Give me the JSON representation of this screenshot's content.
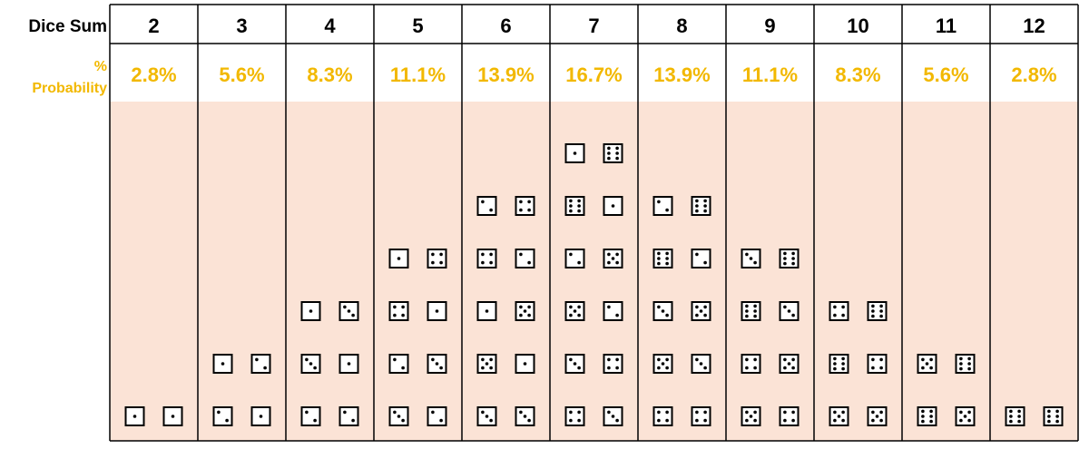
{
  "labels": {
    "sum": "Dice Sum",
    "prob_line1": "%",
    "prob_line2": "Probability"
  },
  "colors": {
    "accent": "#f2b800",
    "fill": "#fbe3d6",
    "border": "#000000"
  },
  "chart_data": {
    "type": "table",
    "columns": [
      {
        "sum": "2",
        "probability": "2.8%",
        "combos": [
          [
            1,
            1
          ]
        ]
      },
      {
        "sum": "3",
        "probability": "5.6%",
        "combos": [
          [
            2,
            1
          ],
          [
            1,
            2
          ]
        ]
      },
      {
        "sum": "4",
        "probability": "8.3%",
        "combos": [
          [
            2,
            2
          ],
          [
            3,
            1
          ],
          [
            1,
            3
          ]
        ]
      },
      {
        "sum": "5",
        "probability": "11.1%",
        "combos": [
          [
            3,
            2
          ],
          [
            2,
            3
          ],
          [
            4,
            1
          ],
          [
            1,
            4
          ]
        ]
      },
      {
        "sum": "6",
        "probability": "13.9%",
        "combos": [
          [
            3,
            3
          ],
          [
            5,
            1
          ],
          [
            1,
            5
          ],
          [
            4,
            2
          ],
          [
            2,
            4
          ]
        ]
      },
      {
        "sum": "7",
        "probability": "16.7%",
        "combos": [
          [
            4,
            3
          ],
          [
            3,
            4
          ],
          [
            5,
            2
          ],
          [
            2,
            5
          ],
          [
            6,
            1
          ],
          [
            1,
            6
          ]
        ]
      },
      {
        "sum": "8",
        "probability": "13.9%",
        "combos": [
          [
            4,
            4
          ],
          [
            5,
            3
          ],
          [
            3,
            5
          ],
          [
            6,
            2
          ],
          [
            2,
            6
          ]
        ]
      },
      {
        "sum": "9",
        "probability": "11.1%",
        "combos": [
          [
            5,
            4
          ],
          [
            4,
            5
          ],
          [
            6,
            3
          ],
          [
            3,
            6
          ]
        ]
      },
      {
        "sum": "10",
        "probability": "8.3%",
        "combos": [
          [
            5,
            5
          ],
          [
            6,
            4
          ],
          [
            4,
            6
          ]
        ]
      },
      {
        "sum": "11",
        "probability": "5.6%",
        "combos": [
          [
            6,
            5
          ],
          [
            5,
            6
          ]
        ]
      },
      {
        "sum": "12",
        "probability": "2.8%",
        "combos": [
          [
            6,
            6
          ]
        ]
      }
    ]
  }
}
